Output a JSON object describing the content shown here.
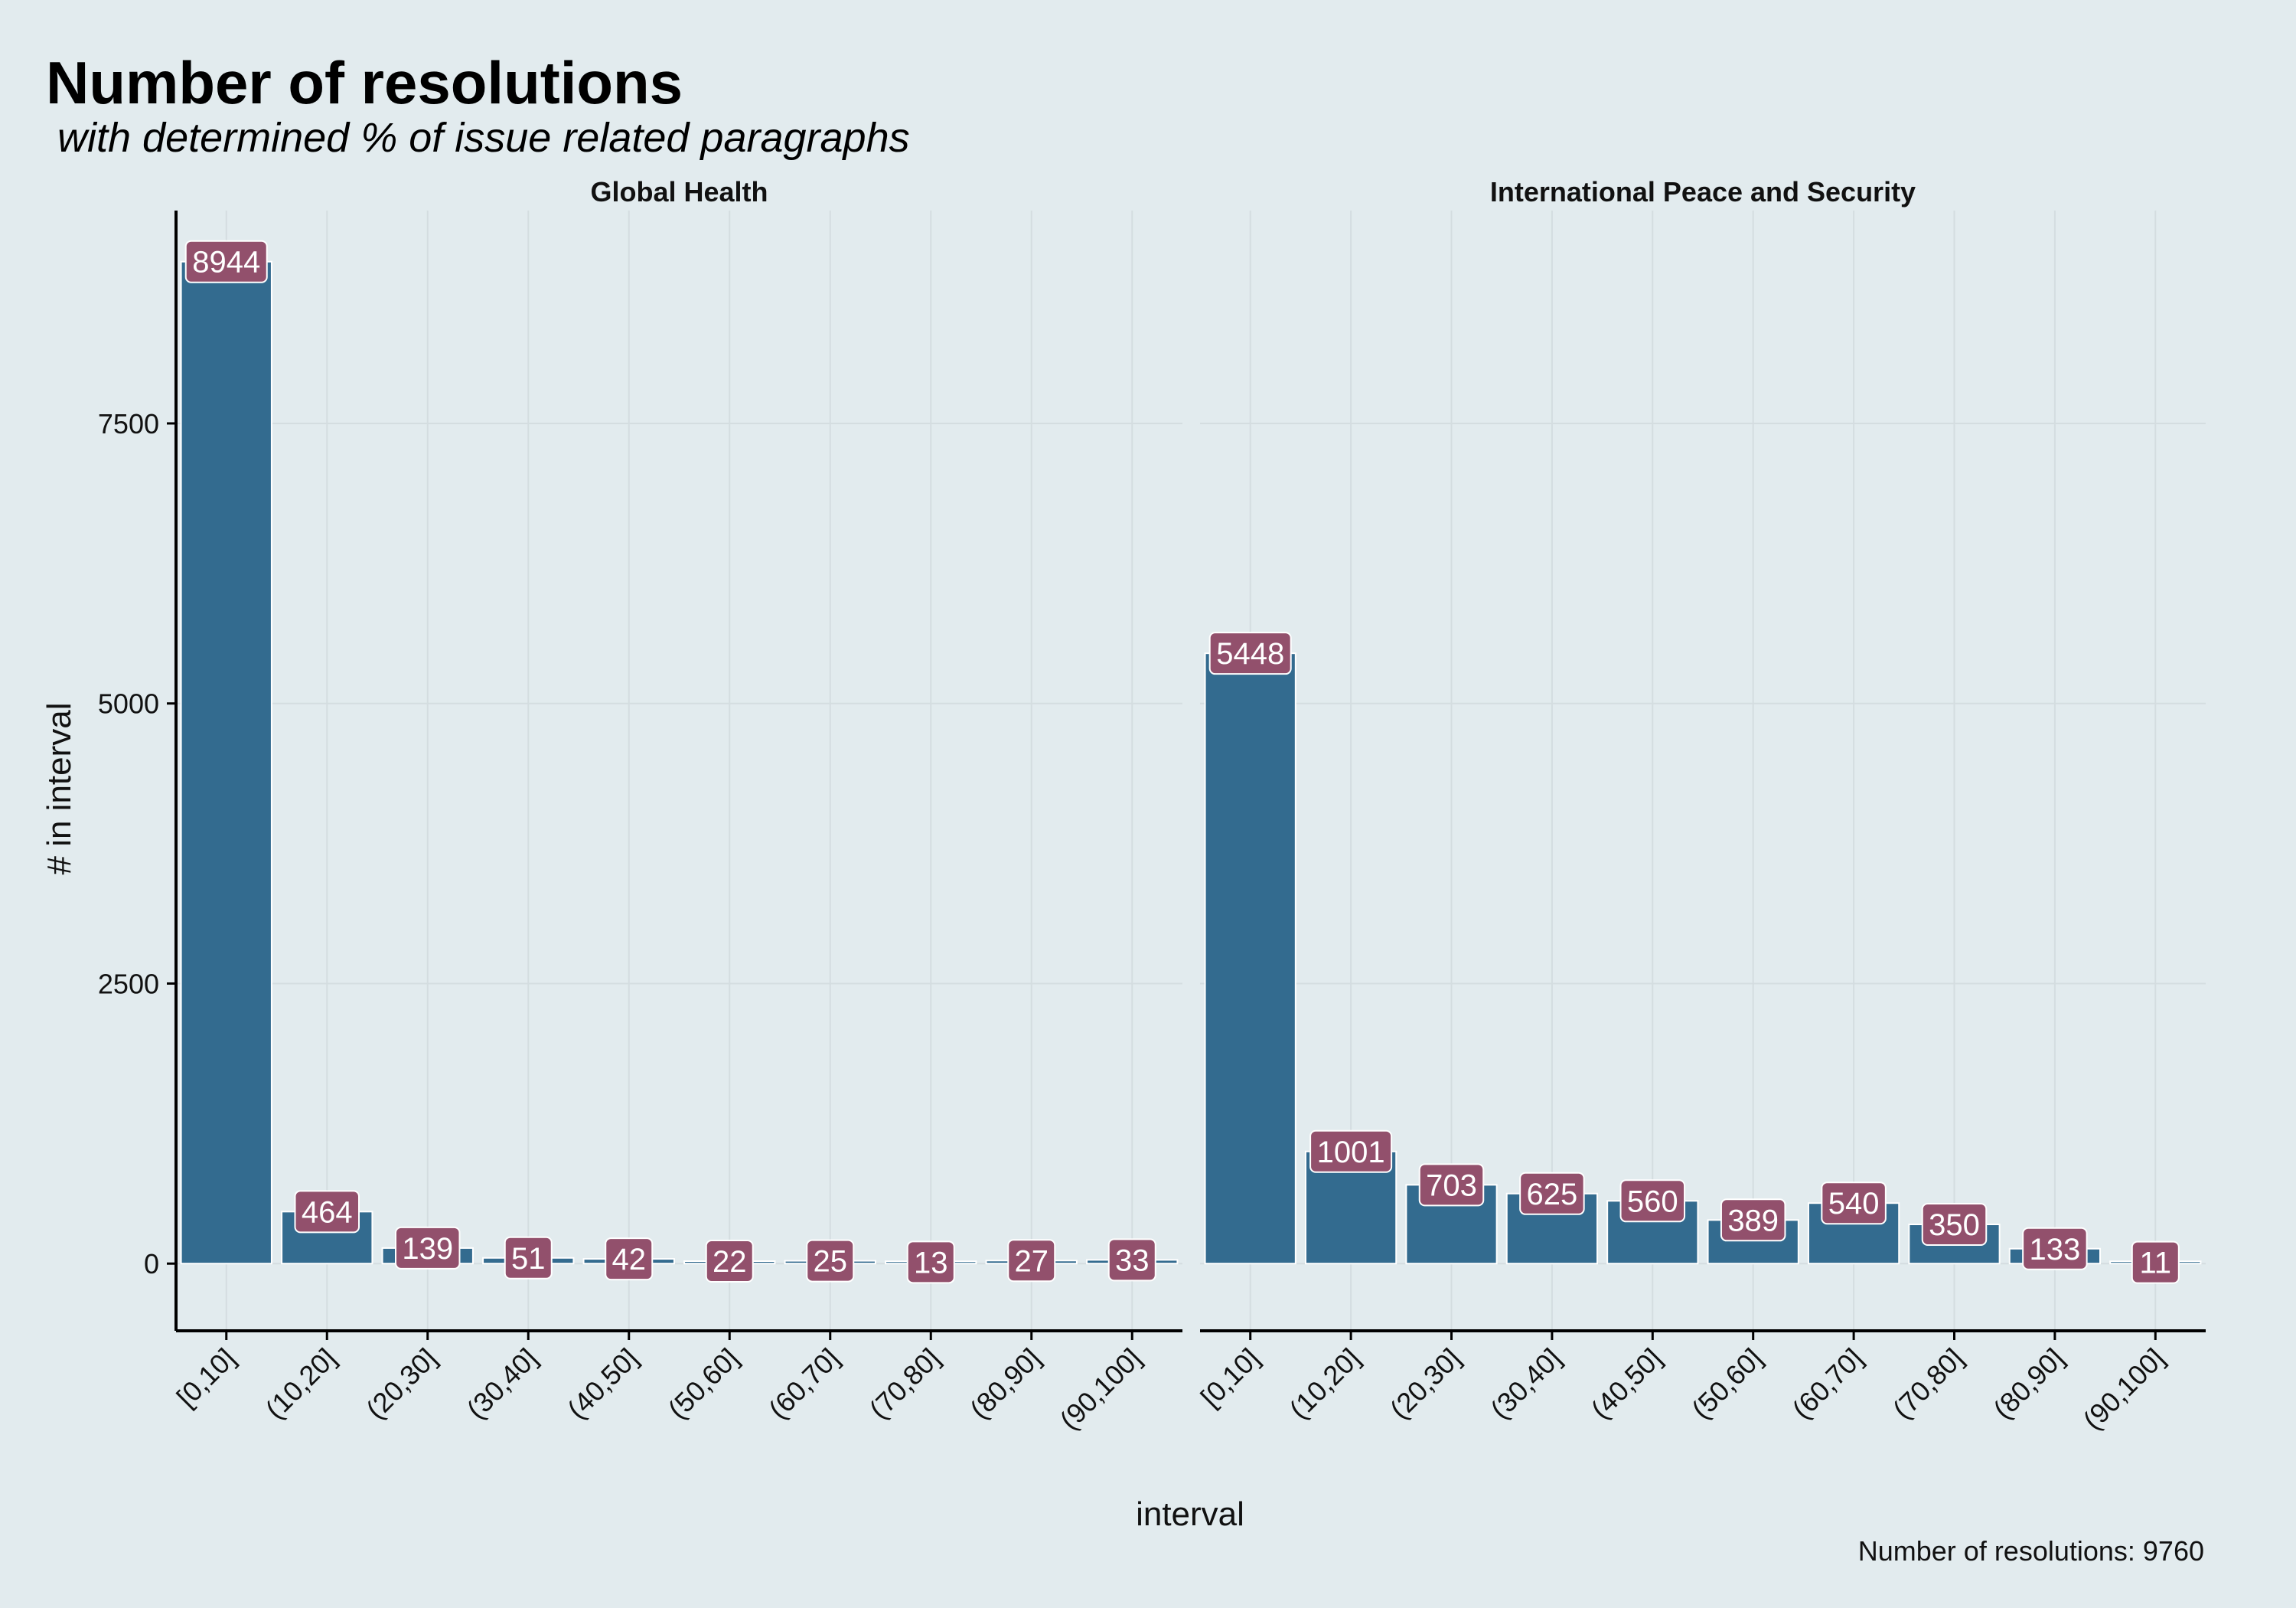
{
  "title": "Number of resolutions",
  "subtitle": "with determined % of issue related paragraphs",
  "caption": "Number of resolutions: 9760",
  "colors": {
    "background": "#e2ebee",
    "bar": "#336b8f",
    "label_fill": "#92506c",
    "label_text": "#ffffff",
    "grid": "#d4dde0",
    "axis": "#000000"
  },
  "chart_data": {
    "type": "bar",
    "xlabel": "interval",
    "ylabel": "# in interval",
    "ylim": [
      -600,
      9400
    ],
    "yticks": [
      0,
      2500,
      5000,
      7500
    ],
    "grid": true,
    "categories": [
      "[0,10]",
      "(10,20]",
      "(20,30]",
      "(30,40]",
      "(40,50]",
      "(50,60]",
      "(60,70]",
      "(70,80]",
      "(80,90]",
      "(90,100]"
    ],
    "facets": [
      {
        "name": "Global Health",
        "values": [
          8944,
          464,
          139,
          51,
          42,
          22,
          25,
          13,
          27,
          33
        ]
      },
      {
        "name": "International Peace and Security",
        "values": [
          5448,
          1001,
          703,
          625,
          560,
          389,
          540,
          350,
          133,
          11
        ]
      }
    ]
  }
}
